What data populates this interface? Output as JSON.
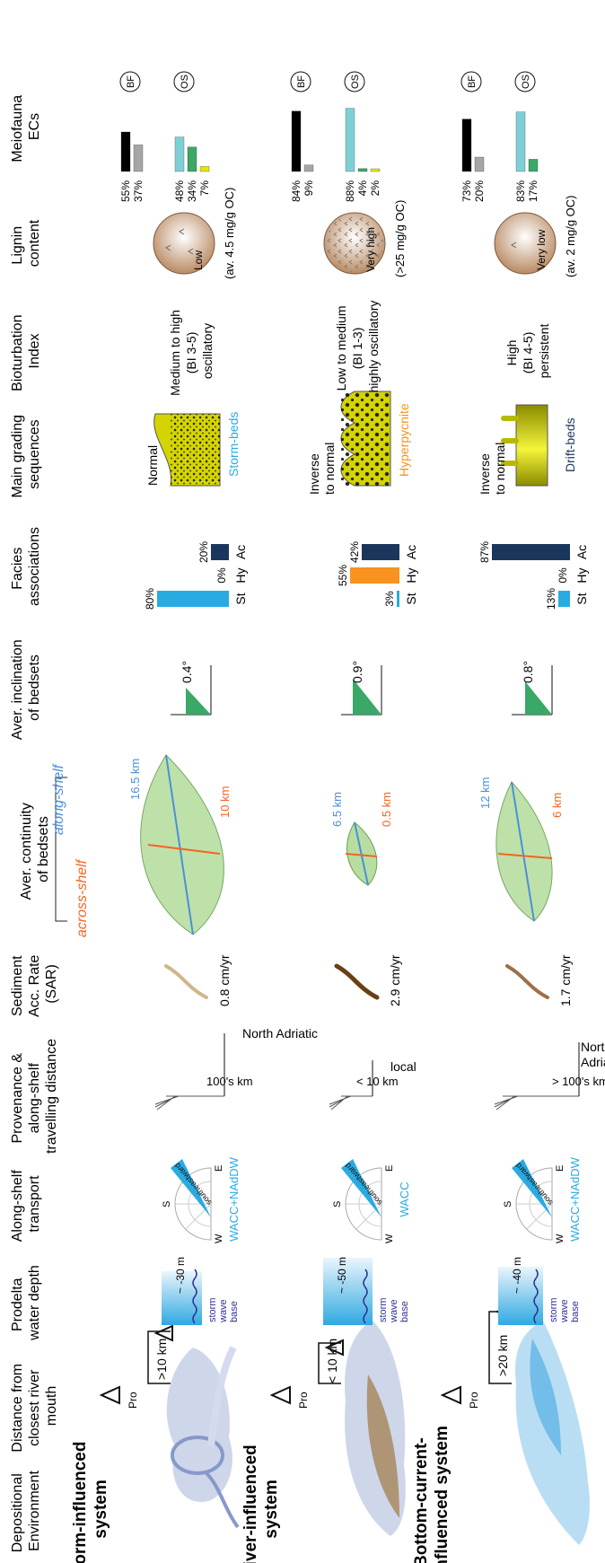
{
  "colors": {
    "black_bar": "#000000",
    "grey_bar": "#a6a6a6",
    "green_bar": "#3aa866",
    "teal_bar": "#7fcfd6",
    "yellow_bar": "#e6e600",
    "storm_blue": "#29abe2",
    "hyperpycnite_orange": "#f7931e",
    "drift_navy": "#1b365d",
    "across_orange": "#f26522",
    "along_blue": "#4a90d9",
    "lobe_green": "#b7dea0",
    "water_blue": "#2fa9e1",
    "wave_purple": "#2e3192",
    "sediment_yellow": "#d4d400"
  },
  "headers": {
    "depositional": [
      "Depositional",
      "Environment"
    ],
    "distance": [
      "Distance from",
      "closest river",
      "mouth"
    ],
    "prodelta_depth": [
      "Prodelta",
      "water depth"
    ],
    "transport": [
      "Along-shelf",
      "transport"
    ],
    "provenance": [
      "Provenance &",
      "along-shelf",
      "travelling distance"
    ],
    "sar": [
      "Sediment",
      "Acc. Rate",
      "(SAR)"
    ],
    "continuity": [
      "Aver. continuity",
      "of bedsets"
    ],
    "across_shelf": "across-shelf",
    "along_shelf": "along-shelf",
    "inclination": [
      "Aver. inclination",
      "of bedsets"
    ],
    "facies": [
      "Facies",
      "associations"
    ],
    "grading": [
      "Main grading",
      "sequences"
    ],
    "bioturbation": [
      "Bioturbation",
      "Index"
    ],
    "lignin": [
      "Lignin",
      "content"
    ],
    "meiofauna": [
      "Meiofauna",
      "ECs"
    ]
  },
  "facies_labels": [
    "St",
    "Hy",
    "Ac"
  ],
  "bf_label": "BF",
  "os_label": "OS",
  "pro_label": "Pro",
  "compass": {
    "w": "W",
    "e": "E",
    "s": "S",
    "direction": "southeastward"
  },
  "wave_base": [
    "storm",
    "wave",
    "base"
  ],
  "systems": [
    {
      "name": [
        "Storm-influenced",
        "system"
      ],
      "distance": ">10 km",
      "depth": "~ -30 m",
      "depth_value_m": 30,
      "current": "WACC+NAdDW",
      "provenance_distance": "100's km",
      "provenance_source": [
        "North Adriatic"
      ],
      "sar": "0.8 cm/yr",
      "sar_value": 0.8,
      "along_km": "16.5 km",
      "across_km": "10 km",
      "inclination": "0.4°",
      "inclination_value": 0.4,
      "facies": [
        {
          "label": "80%",
          "value": 80
        },
        {
          "label": "0%",
          "value": 0
        },
        {
          "label": "20%",
          "value": 20
        }
      ],
      "grading_label": [
        "Normal"
      ],
      "bed_type": "Storm-beds",
      "bioturbation": [
        "Medium to high",
        "(BI 3-5)",
        "oscillatory"
      ],
      "lignin_level": "Low",
      "lignin_oc": "(av. 4.5 mg/g OC)",
      "bf": [
        {
          "label": "55%",
          "value": 55
        },
        {
          "label": "37%",
          "value": 37
        }
      ],
      "os": [
        {
          "label": "48%",
          "value": 48
        },
        {
          "label": "34%",
          "value": 34
        },
        {
          "label": "7%",
          "value": 7
        }
      ]
    },
    {
      "name": [
        "River-influenced",
        "system"
      ],
      "distance": "< 10 km",
      "depth": "~ -50 m",
      "depth_value_m": 50,
      "current": "WACC",
      "provenance_distance": "< 10 km",
      "provenance_source": [
        "local"
      ],
      "sar": "2.9 cm/yr",
      "sar_value": 2.9,
      "along_km": "6.5 km",
      "across_km": "0.5 km",
      "inclination": "0.9°",
      "inclination_value": 0.9,
      "facies": [
        {
          "label": "3%",
          "value": 3
        },
        {
          "label": "55%",
          "value": 55
        },
        {
          "label": "42%",
          "value": 42
        }
      ],
      "grading_label": [
        "Inverse",
        "to normal"
      ],
      "bed_type": "Hyperpycnite",
      "bioturbation": [
        "Low to medium",
        "(BI 1-3)",
        "highly oscillatory"
      ],
      "lignin_level": "Very high",
      "lignin_oc": "(>25 mg/g OC)",
      "bf": [
        {
          "label": "84%",
          "value": 84
        },
        {
          "label": "9%",
          "value": 9
        }
      ],
      "os": [
        {
          "label": "88%",
          "value": 88
        },
        {
          "label": "4%",
          "value": 4
        },
        {
          "label": "2%",
          "value": 2
        }
      ]
    },
    {
      "name": [
        "Bottom-current-",
        "influenced system"
      ],
      "distance": ">20 km",
      "depth": "~ -40 m",
      "depth_value_m": 40,
      "current": "WACC+NAdDW",
      "provenance_distance": "> 100's km",
      "provenance_source": [
        "North & Central",
        "Adriatic"
      ],
      "sar": "1.7 cm/yr",
      "sar_value": 1.7,
      "along_km": "12 km",
      "across_km": "6 km",
      "inclination": "0.8°",
      "inclination_value": 0.8,
      "facies": [
        {
          "label": "13%",
          "value": 13
        },
        {
          "label": "0%",
          "value": 0
        },
        {
          "label": "87%",
          "value": 87
        }
      ],
      "grading_label": [
        "Inverse",
        "to normal"
      ],
      "bed_type": "Drift-beds",
      "bioturbation": [
        "High",
        "(BI 4-5)",
        "persistent"
      ],
      "lignin_level": "Very low",
      "lignin_oc": "(av. 2 mg/g OC)",
      "bf": [
        {
          "label": "73%",
          "value": 73
        },
        {
          "label": "20%",
          "value": 20
        }
      ],
      "os": [
        {
          "label": "83%",
          "value": 83
        },
        {
          "label": "17%",
          "value": 17
        }
      ]
    }
  ]
}
